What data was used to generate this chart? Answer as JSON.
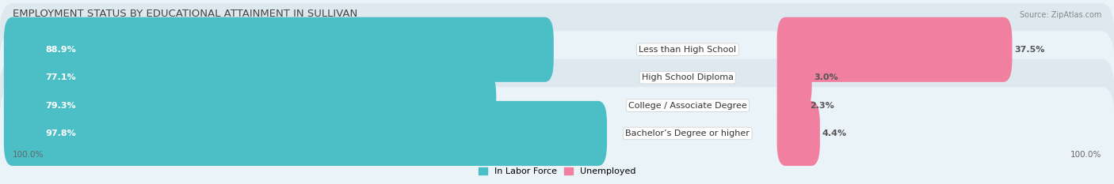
{
  "title": "EMPLOYMENT STATUS BY EDUCATIONAL ATTAINMENT IN SULLIVAN",
  "source": "Source: ZipAtlas.com",
  "categories": [
    "Less than High School",
    "High School Diploma",
    "College / Associate Degree",
    "Bachelor’s Degree or higher"
  ],
  "labor_force_pct": [
    88.9,
    77.1,
    79.3,
    97.8
  ],
  "unemployed_pct": [
    37.5,
    3.0,
    2.3,
    4.4
  ],
  "labor_force_color": "#4bbec6",
  "unemployed_color": "#f07fa0",
  "row_bg_even": "#dde9ee",
  "row_bg_odd": "#eaf3f7",
  "fig_bg": "#eaf3f7",
  "title_fontsize": 9.5,
  "source_fontsize": 7,
  "bar_label_fontsize": 8,
  "category_fontsize": 8,
  "legend_fontsize": 8,
  "axis_label_fontsize": 7.5,
  "left_axis_label": "100.0%",
  "right_axis_label": "100.0%",
  "figsize": [
    14.06,
    2.33
  ],
  "dpi": 100
}
